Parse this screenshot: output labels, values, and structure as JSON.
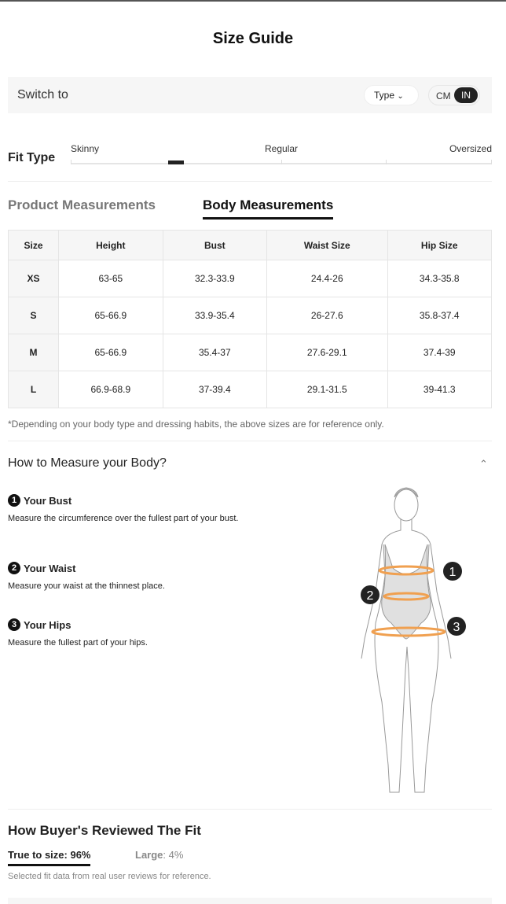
{
  "title": "Size Guide",
  "switch": {
    "label": "Switch to",
    "type_button": "Type",
    "units": [
      "CM",
      "IN"
    ],
    "selected_unit": "IN"
  },
  "fit": {
    "label": "Fit Type",
    "scale": [
      "Skinny",
      "Regular",
      "Oversized"
    ],
    "position_percent": 25
  },
  "tabs": [
    {
      "label": "Product Measurements",
      "active": false
    },
    {
      "label": "Body Measurements",
      "active": true
    }
  ],
  "table": {
    "headers": [
      "Size",
      "Height",
      "Bust",
      "Waist Size",
      "Hip Size"
    ],
    "rows": [
      [
        "XS",
        "63-65",
        "32.3-33.9",
        "24.4-26",
        "34.3-35.8"
      ],
      [
        "S",
        "65-66.9",
        "33.9-35.4",
        "26-27.6",
        "35.8-37.4"
      ],
      [
        "M",
        "65-66.9",
        "35.4-37",
        "27.6-29.1",
        "37.4-39"
      ],
      [
        "L",
        "66.9-68.9",
        "37-39.4",
        "29.1-31.5",
        "39-41.3"
      ]
    ]
  },
  "note": "*Depending on your body type and dressing habits, the above sizes are for reference only.",
  "how": {
    "title": "How to Measure your Body?",
    "steps": [
      {
        "num": "1",
        "title": "Your Bust",
        "text": "Measure the circumference over the fullest part of your bust."
      },
      {
        "num": "2",
        "title": "Your Waist",
        "text": "Measure your waist at the thinnest place."
      },
      {
        "num": "3",
        "title": "Your Hips",
        "text": "Measure the fullest part of your hips."
      }
    ],
    "figure_labels": [
      "1",
      "2",
      "3"
    ],
    "accent": "#f0a050"
  },
  "reviews": {
    "title": "How Buyer's Reviewed The Fit",
    "true_label": "True to size: 96%",
    "large_label": "Large",
    "large_value": ": 4%",
    "note": "Selected fit data from real user reviews for reference."
  }
}
